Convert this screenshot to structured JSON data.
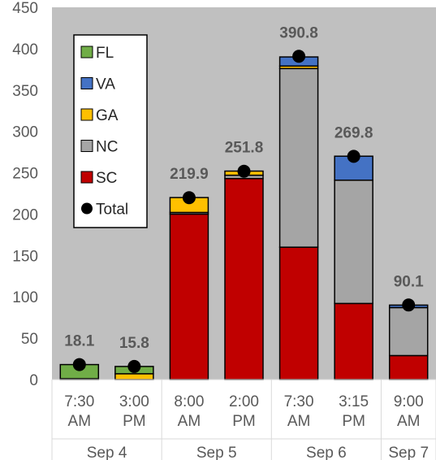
{
  "chart_data": {
    "type": "bar",
    "stacked": true,
    "title": "",
    "xlabel": "",
    "ylabel": "",
    "ylim": [
      0,
      450
    ],
    "y_ticks": [
      0,
      50,
      100,
      150,
      200,
      250,
      300,
      350,
      400,
      450
    ],
    "grid": false,
    "legend_position": "top-left",
    "categories": [
      "7:30 AM",
      "3:00 PM",
      "8:00 AM",
      "2:00 PM",
      "7:30 AM",
      "3:15 PM",
      "9:00 AM"
    ],
    "category_lines": [
      [
        "7:30",
        "AM"
      ],
      [
        "3:00",
        "PM"
      ],
      [
        "8:00",
        "AM"
      ],
      [
        "2:00",
        "PM"
      ],
      [
        "7:30",
        "AM"
      ],
      [
        "3:15",
        "PM"
      ],
      [
        "9:00",
        "AM"
      ]
    ],
    "groups": [
      {
        "label": "Sep 4",
        "span": 2
      },
      {
        "label": "Sep 5",
        "span": 2
      },
      {
        "label": "Sep 6",
        "span": 2
      },
      {
        "label": "Sep 7",
        "span": 1
      }
    ],
    "series": [
      {
        "name": "SC",
        "color": "#c00000",
        "values": [
          0,
          0,
          200,
          243,
          160,
          92,
          29
        ]
      },
      {
        "name": "NC",
        "color": "#a5a5a5",
        "values": [
          0,
          0,
          2,
          4,
          216,
          149,
          58
        ]
      },
      {
        "name": "GA",
        "color": "#ffc000",
        "values": [
          1,
          7,
          18,
          5,
          3,
          0,
          0
        ]
      },
      {
        "name": "VA",
        "color": "#4472c4",
        "values": [
          0,
          0,
          0,
          0,
          11,
          29,
          3
        ]
      },
      {
        "name": "FL",
        "color": "#70ad47",
        "values": [
          17.1,
          8.8,
          0,
          0,
          0,
          0,
          0
        ]
      }
    ],
    "total": {
      "name": "Total",
      "color": "#000000",
      "values": [
        18.1,
        15.8,
        219.9,
        251.8,
        390.8,
        269.8,
        90.1
      ]
    },
    "data_labels": [
      "18.1",
      "15.8",
      "219.9",
      "251.8",
      "390.8",
      "269.8",
      "90.1"
    ],
    "legend_order": [
      "FL",
      "VA",
      "GA",
      "NC",
      "SC",
      "Total"
    ],
    "plot_background": "#c0c0c0"
  }
}
